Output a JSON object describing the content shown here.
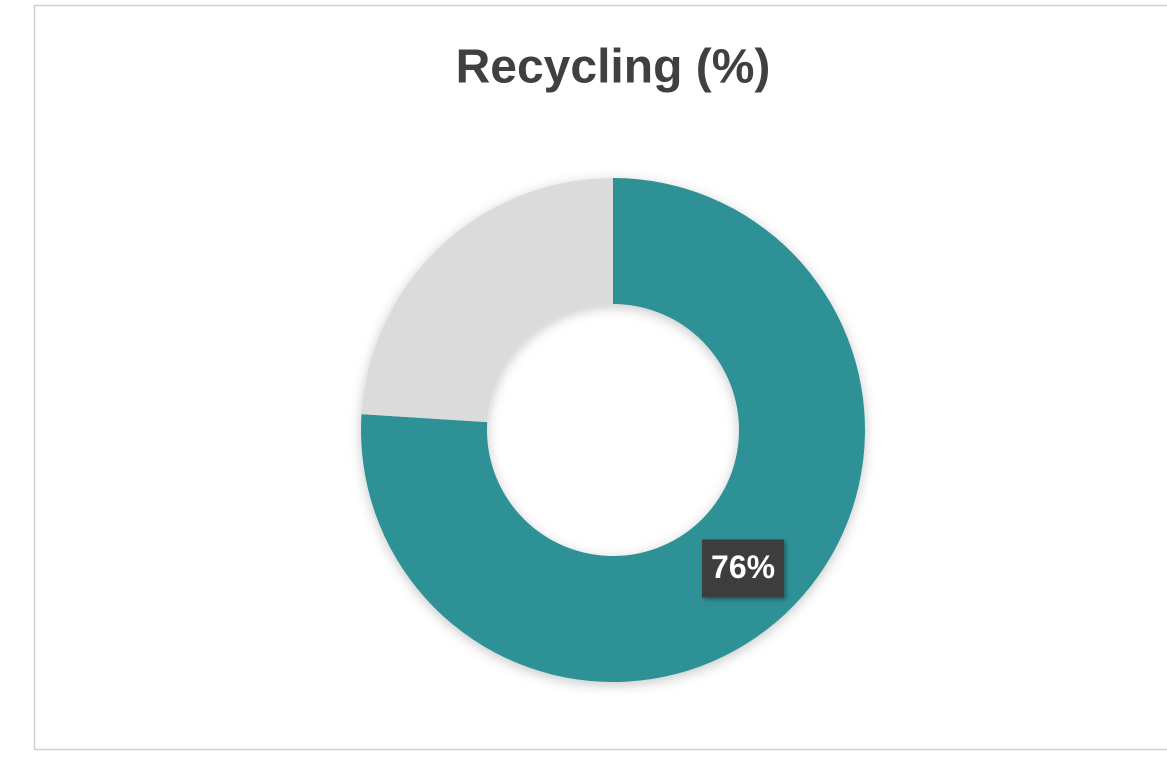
{
  "chart_data": {
    "type": "donut",
    "title": "Recycling (%)",
    "values": [
      76,
      24
    ],
    "value_labels": [
      "76%",
      null
    ],
    "colors": [
      "#2e9196",
      "#dbdbdb"
    ]
  }
}
